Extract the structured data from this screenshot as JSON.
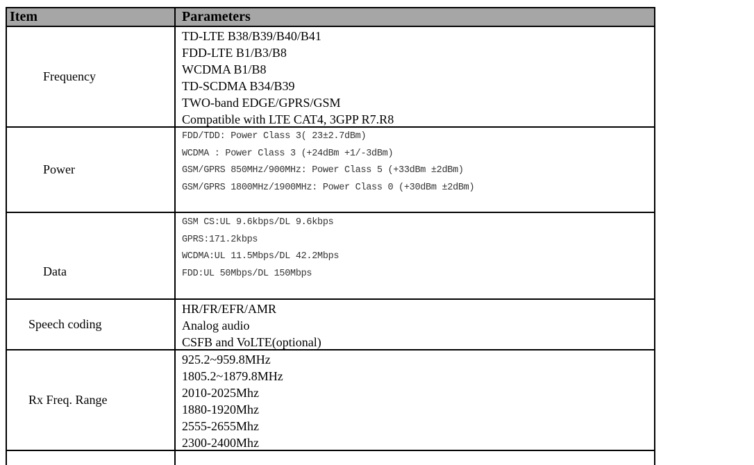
{
  "header": {
    "item": "Item",
    "parameters": "Parameters"
  },
  "rows": [
    {
      "item": "Frequency",
      "lines": [
        "TD-LTE B38/B39/B40/B41",
        "FDD-LTE B1/B3/B8",
        "WCDMA B1/B8",
        "TD-SCDMA B34/B39",
        "TWO-band EDGE/GPRS/GSM",
        "Compatible with LTE CAT4, 3GPP R7.R8"
      ]
    },
    {
      "item": "Power",
      "lines": [
        "FDD/TDD:  Power Class 3( 23±2.7dBm)",
        "WCDMA : Power Class 3 (+24dBm +1/-3dBm)",
        "GSM/GPRS 850MHz/900MHz: Power Class 5 (+33dBm ±2dBm)",
        "GSM/GPRS 1800MHz/1900MHz: Power Class 0 (+30dBm ±2dBm)"
      ]
    },
    {
      "item": "Data",
      "lines": [
        "GSM CS:UL 9.6kbps/DL 9.6kbps",
        "GPRS:171.2kbps",
        "WCDMA:UL 11.5Mbps/DL 42.2Mbps",
        "FDD:UL 50Mbps/DL 150Mbps"
      ]
    },
    {
      "item": "Speech coding",
      "lines": [
        "HR/FR/EFR/AMR",
        "Analog audio",
        "CSFB and VoLTE(optional)"
      ]
    },
    {
      "item": "Rx Freq. Range",
      "lines": [
        "925.2~959.8MHz",
        "1805.2~1879.8MHz",
        "2010-2025Mhz",
        "1880-1920Mhz",
        "2555-2655Mhz",
        "2300-2400Mhz"
      ]
    }
  ]
}
